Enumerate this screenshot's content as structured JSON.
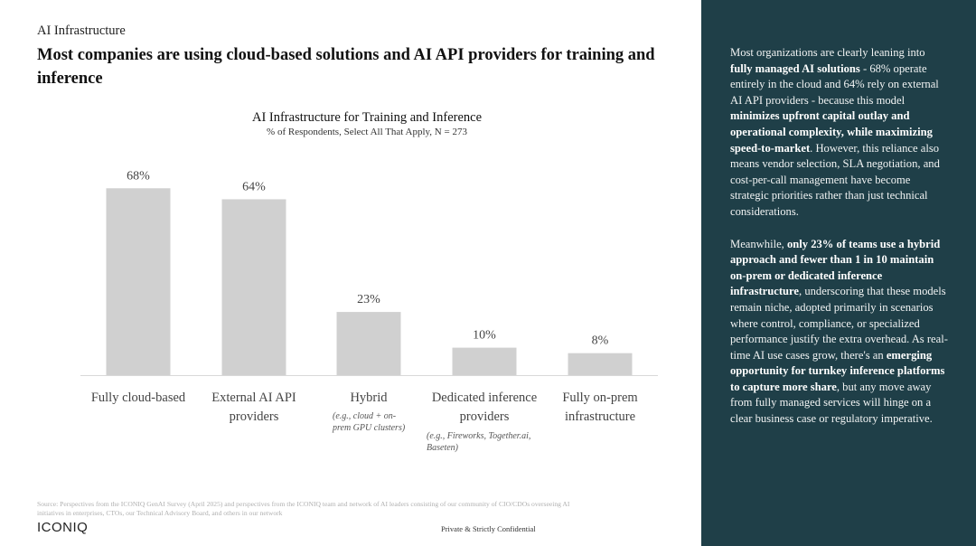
{
  "section_label": "AI Infrastructure",
  "headline": "Most companies are using cloud-based solutions and AI API providers for training and inference",
  "chart_data": {
    "type": "bar",
    "title": "AI Infrastructure for Training and Inference",
    "subtitle": "% of Respondents, Select All That Apply, N = 273",
    "categories": [
      [
        "Fully cloud-based"
      ],
      [
        "External AI API",
        "providers"
      ],
      [
        "Hybrid"
      ],
      [
        "Dedicated inference",
        "providers"
      ],
      [
        "Fully on-prem",
        "infrastructure"
      ]
    ],
    "notes": [
      [],
      [],
      [
        "(e.g., cloud + on-",
        "prem GPU clusters)"
      ],
      [
        "(e.g., Fireworks, Together.ai,",
        "Baseten)"
      ],
      []
    ],
    "values": [
      68,
      64,
      23,
      10,
      8
    ],
    "value_labels": [
      "68%",
      "64%",
      "23%",
      "10%",
      "8%"
    ],
    "ylim": [
      0,
      100
    ],
    "colors": {
      "bar": "#d0d0d0",
      "axis": "#d8d8d8"
    }
  },
  "sidebar": {
    "paragraphs": [
      [
        {
          "text": "Most organizations are clearly leaning into ",
          "bold": false
        },
        {
          "text": "fully managed AI solutions",
          "bold": true
        },
        {
          "text": " - 68% operate entirely in the cloud and 64% rely on external AI API providers - because this model ",
          "bold": false
        },
        {
          "text": "minimizes upfront capital outlay and operational complexity, while maximizing speed-to-market",
          "bold": true
        },
        {
          "text": ". However, this reliance also means vendor selection, SLA negotiation, and cost-per-call management have become strategic priorities rather than just technical considerations.",
          "bold": false
        }
      ],
      [
        {
          "text": "Meanwhile, ",
          "bold": false
        },
        {
          "text": "only 23% of teams use a hybrid approach and fewer than 1 in 10 maintain on-prem or dedicated inference infrastructure",
          "bold": true
        },
        {
          "text": ", underscoring that these models remain niche, adopted primarily in scenarios where control, compliance, or specialized performance justify the extra overhead. As real-time AI use cases grow, there's an ",
          "bold": false
        },
        {
          "text": "emerging opportunity for turnkey inference platforms to capture more share",
          "bold": true
        },
        {
          "text": ", but any move away from fully managed services will hinge on a clear business case or regulatory imperative.",
          "bold": false
        }
      ]
    ],
    "colors": {
      "background": "#1f3f48"
    }
  },
  "footer": {
    "source": "Source: Perspectives from the ICONIQ GenAI Survey (April 2025) and perspectives from the ICONIQ team and network of AI leaders consisting of our community of CIO/CDOs overseeing AI initiatives in enterprises, CTOs, our Technical Advisory Board, and others in our network",
    "logo": "ICONIQ",
    "confidential": "Private & Strictly Confidential"
  }
}
